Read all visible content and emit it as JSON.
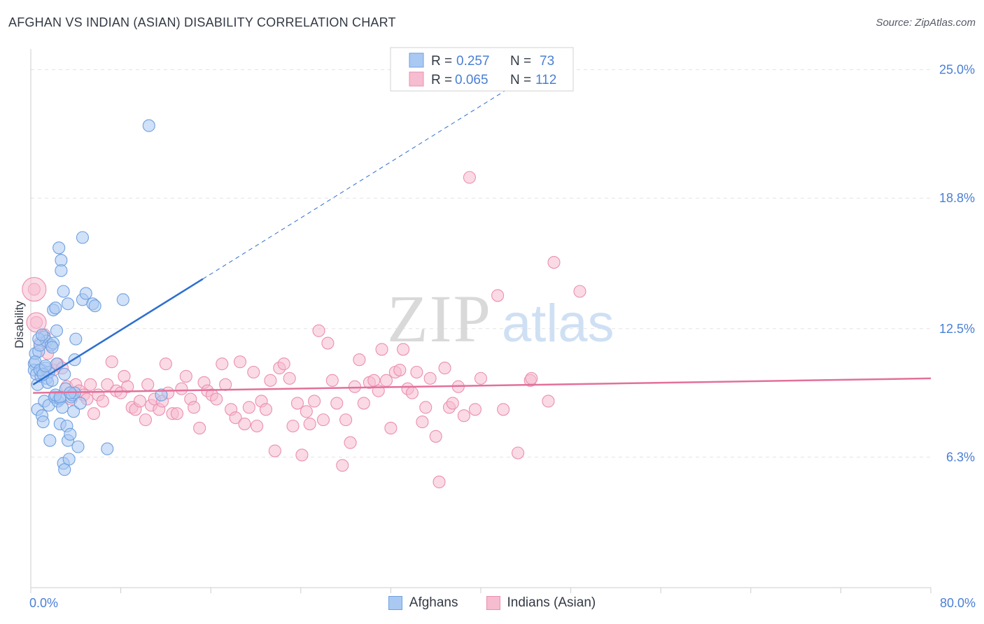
{
  "title": "AFGHAN VS INDIAN (ASIAN) DISABILITY CORRELATION CHART",
  "source": "Source: ZipAtlas.com",
  "watermark": {
    "zip": "ZIP",
    "atlas": "atlas"
  },
  "colors": {
    "blue_fill": "#a9c9f2",
    "blue_stroke": "#6fa0e0",
    "blue_line": "#2e6fd0",
    "pink_fill": "#f6bcd0",
    "pink_stroke": "#eb8fb0",
    "pink_line": "#e2709a",
    "axis_text": "#4a7fd4",
    "grid": "#e3e3e3"
  },
  "legend_top": [
    {
      "r_label": "R =",
      "r_value": "0.257",
      "n_label": "N =",
      "n_value": "73",
      "series": "Afghans"
    },
    {
      "r_label": "R =",
      "r_value": "0.065",
      "n_label": "N =",
      "n_value": "112",
      "series": "Indians (Asian)"
    }
  ],
  "chart_data": {
    "type": "scatter",
    "title": "AFGHAN VS INDIAN (ASIAN) DISABILITY CORRELATION CHART",
    "xlabel": "",
    "ylabel": "Disability",
    "xlim": [
      0,
      80
    ],
    "ylim": [
      0,
      26
    ],
    "x_tick_labels": [
      "0.0%",
      "80.0%"
    ],
    "y_ticks": [
      6.3,
      12.5,
      18.8,
      25.0
    ],
    "y_tick_labels": [
      "6.3%",
      "12.5%",
      "18.8%",
      "25.0%"
    ],
    "grid": true,
    "legend_position": "top-center",
    "series": [
      {
        "name": "Afghans",
        "color": "#a9c9f2",
        "trend": {
          "x0": 0.2,
          "y0": 9.8,
          "x1": 15.3,
          "y1": 14.9,
          "dashed_to_x": 42.5,
          "dashed_to_y": 24.1
        },
        "points": [
          [
            0.3,
            10.8
          ],
          [
            0.3,
            10.5
          ],
          [
            0.4,
            11.3
          ],
          [
            0.5,
            10.3
          ],
          [
            0.6,
            9.8
          ],
          [
            0.6,
            8.6
          ],
          [
            0.7,
            11.4
          ],
          [
            0.8,
            11.7
          ],
          [
            0.9,
            10.2
          ],
          [
            1.0,
            10.5
          ],
          [
            1.0,
            8.3
          ],
          [
            1.1,
            8.0
          ],
          [
            1.2,
            9.0
          ],
          [
            1.2,
            12.1
          ],
          [
            1.3,
            10.6
          ],
          [
            1.4,
            11.9
          ],
          [
            1.4,
            10.1
          ],
          [
            1.5,
            9.9
          ],
          [
            1.6,
            10.4
          ],
          [
            1.6,
            8.8
          ],
          [
            1.7,
            7.1
          ],
          [
            1.8,
            11.7
          ],
          [
            1.9,
            10.0
          ],
          [
            2.0,
            11.8
          ],
          [
            2.0,
            13.4
          ],
          [
            2.1,
            9.2
          ],
          [
            2.2,
            13.5
          ],
          [
            2.3,
            12.4
          ],
          [
            2.3,
            10.8
          ],
          [
            2.4,
            9.0
          ],
          [
            2.5,
            16.4
          ],
          [
            2.6,
            9.1
          ],
          [
            2.6,
            7.9
          ],
          [
            2.7,
            15.8
          ],
          [
            2.7,
            15.3
          ],
          [
            2.8,
            8.7
          ],
          [
            2.9,
            14.3
          ],
          [
            2.9,
            6.0
          ],
          [
            3.0,
            5.7
          ],
          [
            3.0,
            10.3
          ],
          [
            3.1,
            9.6
          ],
          [
            3.2,
            7.8
          ],
          [
            3.3,
            7.1
          ],
          [
            3.3,
            13.7
          ],
          [
            3.4,
            6.2
          ],
          [
            3.5,
            7.4
          ],
          [
            3.6,
            9.2
          ],
          [
            3.7,
            9.3
          ],
          [
            3.8,
            8.5
          ],
          [
            3.9,
            11.0
          ],
          [
            3.9,
            9.4
          ],
          [
            4.0,
            12.0
          ],
          [
            4.2,
            6.8
          ],
          [
            4.4,
            8.9
          ],
          [
            4.6,
            13.9
          ],
          [
            4.6,
            16.9
          ],
          [
            4.9,
            14.2
          ],
          [
            5.5,
            13.7
          ],
          [
            5.7,
            13.6
          ],
          [
            6.8,
            6.7
          ],
          [
            8.2,
            13.9
          ],
          [
            10.5,
            22.3
          ],
          [
            11.6,
            9.3
          ],
          [
            0.4,
            10.9
          ],
          [
            0.8,
            10.5
          ],
          [
            1.1,
            10.3
          ],
          [
            1.3,
            10.7
          ],
          [
            1.9,
            11.6
          ],
          [
            2.2,
            9.3
          ],
          [
            2.6,
            9.2
          ],
          [
            3.5,
            9.4
          ],
          [
            0.7,
            12.0
          ],
          [
            1.0,
            12.2
          ]
        ]
      },
      {
        "name": "Indians (Asian)",
        "color": "#f6bcd0",
        "trend": {
          "x0": 0.2,
          "y0": 9.4,
          "x1": 80.0,
          "y1": 10.1
        },
        "points": [
          [
            0.3,
            14.4
          ],
          [
            0.5,
            12.8
          ],
          [
            0.8,
            11.8
          ],
          [
            1.2,
            12.2
          ],
          [
            1.5,
            11.3
          ],
          [
            2.0,
            10.5
          ],
          [
            2.4,
            10.8
          ],
          [
            2.8,
            10.6
          ],
          [
            3.2,
            9.7
          ],
          [
            3.6,
            9.1
          ],
          [
            4.0,
            9.8
          ],
          [
            4.3,
            9.5
          ],
          [
            4.7,
            9.3
          ],
          [
            5.0,
            9.1
          ],
          [
            5.3,
            9.8
          ],
          [
            5.6,
            8.4
          ],
          [
            6.0,
            9.3
          ],
          [
            6.4,
            9.0
          ],
          [
            6.8,
            9.8
          ],
          [
            7.2,
            10.9
          ],
          [
            7.6,
            9.5
          ],
          [
            8.0,
            9.4
          ],
          [
            8.3,
            10.2
          ],
          [
            8.6,
            9.7
          ],
          [
            9.0,
            8.7
          ],
          [
            9.3,
            8.6
          ],
          [
            9.7,
            9.0
          ],
          [
            10.2,
            8.1
          ],
          [
            10.4,
            9.8
          ],
          [
            10.7,
            8.8
          ],
          [
            11.0,
            9.1
          ],
          [
            11.4,
            8.6
          ],
          [
            11.7,
            9.0
          ],
          [
            12.0,
            10.8
          ],
          [
            12.2,
            9.4
          ],
          [
            12.6,
            8.4
          ],
          [
            13.0,
            8.4
          ],
          [
            13.4,
            9.6
          ],
          [
            13.8,
            10.2
          ],
          [
            14.2,
            9.1
          ],
          [
            14.5,
            8.7
          ],
          [
            15.0,
            7.7
          ],
          [
            15.4,
            9.9
          ],
          [
            15.7,
            9.5
          ],
          [
            16.1,
            9.3
          ],
          [
            16.5,
            9.1
          ],
          [
            17.0,
            10.8
          ],
          [
            17.3,
            9.8
          ],
          [
            17.8,
            8.6
          ],
          [
            18.2,
            8.2
          ],
          [
            18.6,
            10.9
          ],
          [
            19.0,
            7.9
          ],
          [
            19.4,
            8.7
          ],
          [
            19.8,
            10.4
          ],
          [
            20.1,
            7.8
          ],
          [
            20.5,
            9.0
          ],
          [
            20.9,
            8.6
          ],
          [
            21.3,
            10.0
          ],
          [
            21.7,
            6.6
          ],
          [
            22.1,
            10.6
          ],
          [
            22.5,
            10.8
          ],
          [
            23.0,
            10.1
          ],
          [
            23.3,
            7.8
          ],
          [
            23.7,
            8.9
          ],
          [
            24.1,
            6.4
          ],
          [
            24.5,
            8.5
          ],
          [
            24.8,
            7.9
          ],
          [
            25.2,
            9.0
          ],
          [
            25.6,
            12.4
          ],
          [
            26.0,
            8.1
          ],
          [
            26.4,
            11.8
          ],
          [
            26.8,
            10.0
          ],
          [
            27.2,
            8.9
          ],
          [
            27.7,
            5.9
          ],
          [
            28.0,
            8.1
          ],
          [
            28.4,
            7.0
          ],
          [
            28.8,
            9.7
          ],
          [
            29.2,
            11.0
          ],
          [
            29.6,
            8.9
          ],
          [
            30.1,
            9.9
          ],
          [
            30.5,
            10.0
          ],
          [
            30.9,
            9.5
          ],
          [
            31.2,
            11.5
          ],
          [
            31.6,
            10.0
          ],
          [
            32.0,
            7.7
          ],
          [
            32.4,
            10.4
          ],
          [
            32.8,
            10.5
          ],
          [
            33.1,
            11.5
          ],
          [
            33.5,
            9.6
          ],
          [
            33.9,
            9.4
          ],
          [
            34.3,
            10.4
          ],
          [
            34.8,
            8.0
          ],
          [
            35.1,
            8.7
          ],
          [
            35.5,
            10.1
          ],
          [
            36.0,
            7.3
          ],
          [
            36.3,
            5.1
          ],
          [
            36.8,
            10.6
          ],
          [
            37.2,
            8.7
          ],
          [
            37.5,
            8.9
          ],
          [
            38.0,
            9.7
          ],
          [
            38.5,
            8.3
          ],
          [
            39.0,
            19.8
          ],
          [
            39.5,
            8.6
          ],
          [
            40.0,
            10.1
          ],
          [
            41.5,
            14.1
          ],
          [
            42.0,
            8.6
          ],
          [
            43.3,
            6.5
          ],
          [
            44.4,
            10.0
          ],
          [
            44.5,
            10.1
          ],
          [
            46.0,
            9.0
          ],
          [
            48.8,
            14.3
          ],
          [
            46.5,
            15.7
          ]
        ]
      }
    ]
  }
}
